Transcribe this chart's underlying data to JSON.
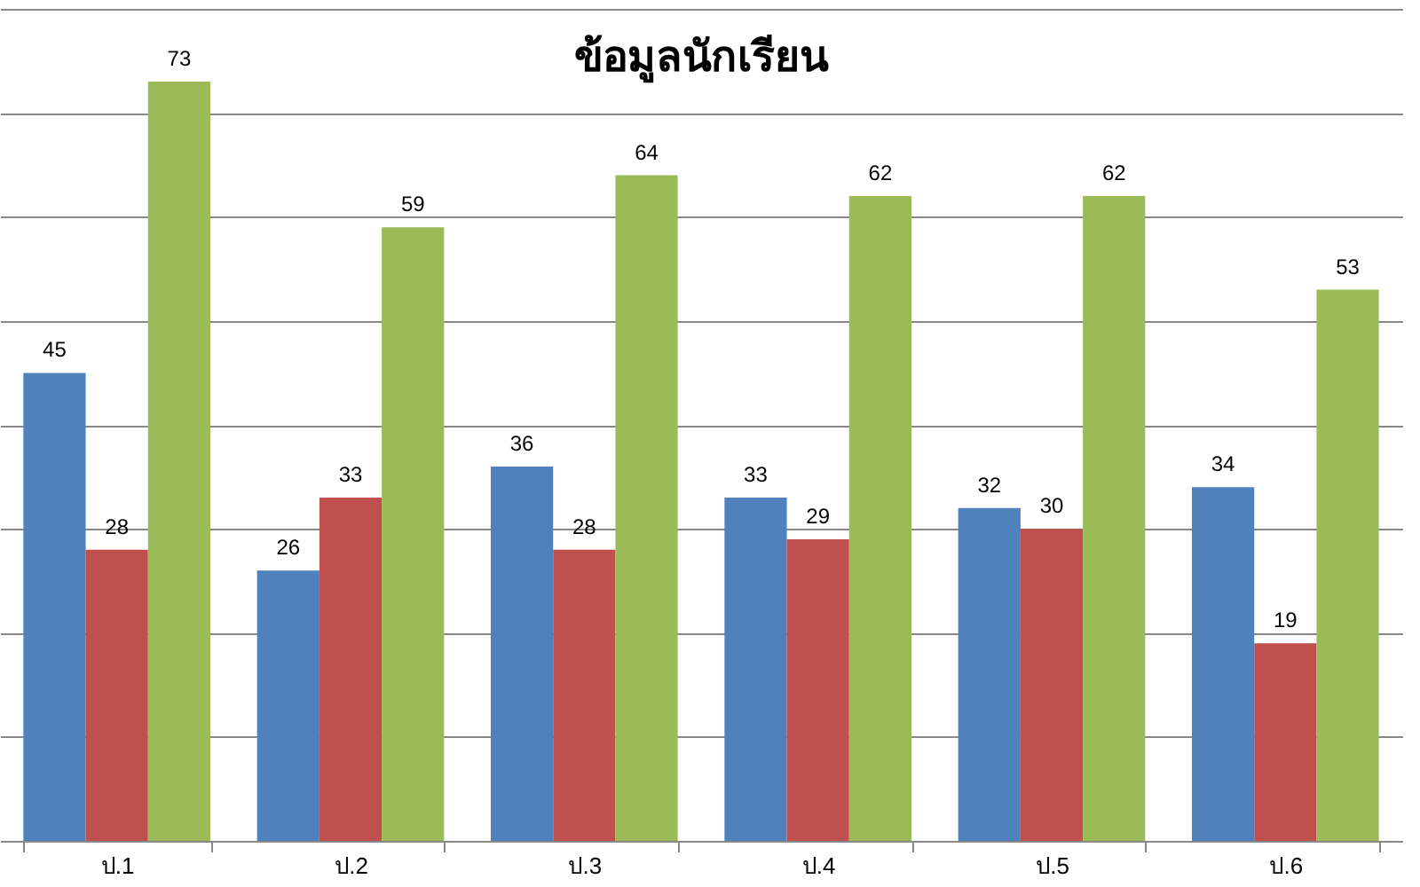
{
  "chart_data": {
    "type": "bar",
    "title": "ข้อมูลนักเรียน",
    "categories": [
      "ป.1",
      "ป.2",
      "ป.3",
      "ป.4",
      "ป.5",
      "ป.6"
    ],
    "series": [
      {
        "color": "#4f81bd",
        "values": [
          45,
          26,
          36,
          33,
          32,
          34
        ]
      },
      {
        "color": "#c0504d",
        "values": [
          28,
          33,
          28,
          29,
          30,
          19
        ]
      },
      {
        "color": "#9bbb59",
        "values": [
          73,
          59,
          64,
          62,
          62,
          53
        ]
      }
    ],
    "ylim": [
      0,
      80
    ],
    "yticks": [
      {
        "value": 0,
        "label": null
      },
      {
        "value": 10,
        "label": null
      },
      {
        "value": 20,
        "label": null
      },
      {
        "value": 30,
        "label": null
      },
      {
        "value": 40,
        "label": null
      },
      {
        "value": 50,
        "label": null
      },
      {
        "value": 60,
        "label": null
      },
      {
        "value": 70,
        "label": null
      },
      {
        "value": 80,
        "label": null
      }
    ],
    "grid": "y",
    "tick_labels": "x",
    "data_labels": true
  }
}
